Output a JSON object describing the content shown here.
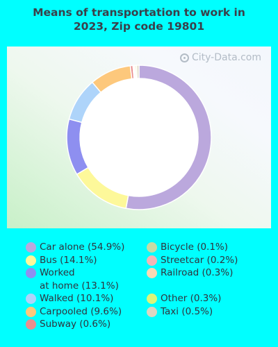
{
  "chart_data": {
    "type": "pie",
    "title": "Means of transportation to work in 2023, Zip code 19801",
    "watermark": "City-Data.com",
    "categories": [
      "Car alone",
      "Bus",
      "Worked at home",
      "Walked",
      "Carpooled",
      "Subway",
      "Bicycle",
      "Streetcar",
      "Railroad",
      "Other",
      "Taxi"
    ],
    "values": [
      54.9,
      14.1,
      13.1,
      10.1,
      9.6,
      0.6,
      0.1,
      0.2,
      0.3,
      0.3,
      0.5
    ],
    "colors": [
      "#bba8dd",
      "#fdf89a",
      "#8e8ff0",
      "#aed4fa",
      "#fdc87c",
      "#ea8e8e",
      "#c7dba5",
      "#f2b6b6",
      "#fbd9b4",
      "#dcf57a",
      "#dcd6c2"
    ],
    "legend": {
      "col1": [
        {
          "label": "Car alone (54.9%)",
          "color": "#bba8dd"
        },
        {
          "label": "Bus (14.1%)",
          "color": "#fdf89a"
        },
        {
          "label": "Worked",
          "label2": "at home (13.1%)",
          "color": "#8e8ff0"
        },
        {
          "label": "Walked (10.1%)",
          "color": "#aed4fa"
        },
        {
          "label": "Carpooled (9.6%)",
          "color": "#fdc87c"
        },
        {
          "label": "Subway (0.6%)",
          "color": "#ea8e8e"
        }
      ],
      "col2": [
        {
          "label": "Bicycle (0.1%)",
          "color": "#c7dba5"
        },
        {
          "label": "Streetcar (0.2%)",
          "color": "#f2b6b6"
        },
        {
          "label": "Railroad (0.3%)",
          "color": "#fbd9b4"
        },
        {
          "label": "",
          "color": ""
        },
        {
          "label": "Other (0.3%)",
          "color": "#dcf57a"
        },
        {
          "label": "Taxi (0.5%)",
          "color": "#dcd6c2"
        }
      ]
    }
  }
}
